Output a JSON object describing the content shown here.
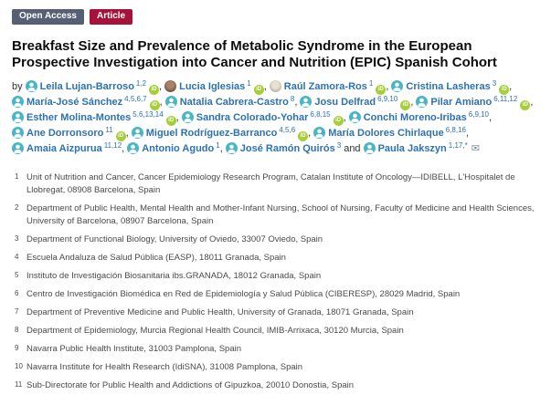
{
  "badges": [
    {
      "label": "Open Access",
      "color": "#565f73"
    },
    {
      "label": "Article",
      "color": "#a6123a"
    }
  ],
  "title": "Breakfast Size and Prevalence of Metabolic Syndrome in the European Prospective Investigation into Cancer and Nutrition (EPIC) Spanish Cohort",
  "byline": {
    "prefix": "by"
  },
  "icons": {
    "orcid": "iD",
    "envelope": "✉"
  },
  "colors": {
    "open_access_badge": "#565f73",
    "article_badge": "#a6123a",
    "author_link": "#2d72b0",
    "orcid_green": "#a6ce39",
    "avatar_teal": "#49b6c6",
    "envelope_gray": "#7b8ba0"
  },
  "authors": [
    {
      "name": "Leila Lujan-Barroso",
      "sup": "1,2",
      "orcid": true,
      "corresponding": false,
      "avatar": "generic",
      "sep": ","
    },
    {
      "name": "Lucia Iglesias",
      "sup": "1",
      "orcid": true,
      "corresponding": false,
      "avatar": "photo-dark",
      "sep": ","
    },
    {
      "name": "Raúl Zamora-Ros",
      "sup": "1",
      "orcid": true,
      "corresponding": false,
      "avatar": "photo-light",
      "sep": ","
    },
    {
      "name": "Cristina Lasheras",
      "sup": "3",
      "orcid": true,
      "corresponding": false,
      "avatar": "generic",
      "sep": ","
    },
    {
      "name": "María-José Sánchez",
      "sup": "4,5,6,7",
      "orcid": true,
      "corresponding": false,
      "avatar": "generic",
      "sep": ","
    },
    {
      "name": "Natalia Cabrera-Castro",
      "sup": "8",
      "orcid": false,
      "corresponding": false,
      "avatar": "generic",
      "sep": ","
    },
    {
      "name": "Josu Delfrad",
      "sup": "6,9,10",
      "orcid": true,
      "corresponding": false,
      "avatar": "generic",
      "sep": ","
    },
    {
      "name": "Pilar Amiano",
      "sup": "6,11,12",
      "orcid": true,
      "corresponding": false,
      "avatar": "generic",
      "sep": ","
    },
    {
      "name": "Esther Molina-Montes",
      "sup": "5,6,13,14",
      "orcid": true,
      "corresponding": false,
      "avatar": "generic",
      "sep": ","
    },
    {
      "name": "Sandra Colorado-Yohar",
      "sup": "6,8,15",
      "orcid": true,
      "corresponding": false,
      "avatar": "generic",
      "sep": ","
    },
    {
      "name": "Conchi Moreno-Iribas",
      "sup": "6,9,10",
      "orcid": false,
      "corresponding": false,
      "avatar": "generic",
      "sep": ","
    },
    {
      "name": "Ane Dorronsoro",
      "sup": "11",
      "orcid": true,
      "corresponding": false,
      "avatar": "generic",
      "sep": ","
    },
    {
      "name": "Miguel Rodríguez-Barranco",
      "sup": "4,5,6",
      "orcid": true,
      "corresponding": false,
      "avatar": "generic",
      "sep": ","
    },
    {
      "name": "María Dolores Chirlaque",
      "sup": "6,8,16",
      "orcid": false,
      "corresponding": false,
      "avatar": "generic",
      "sep": ","
    },
    {
      "name": "Amaia Aizpurua",
      "sup": "11,12",
      "orcid": false,
      "corresponding": false,
      "avatar": "generic",
      "sep": ","
    },
    {
      "name": "Antonio Agudo",
      "sup": "1",
      "orcid": false,
      "corresponding": false,
      "avatar": "generic",
      "sep": ","
    },
    {
      "name": "José Ramón Quirós",
      "sup": "3",
      "orcid": false,
      "corresponding": false,
      "avatar": "generic",
      "sep": " and"
    },
    {
      "name": "Paula Jakszyn",
      "sup": "1,17,*",
      "orcid": false,
      "corresponding": true,
      "avatar": "generic",
      "sep": ""
    }
  ],
  "affiliations": [
    {
      "num": "1",
      "text": "Unit of Nutrition and Cancer, Cancer Epidemiology Research Program, Catalan Institute of Oncology—IDIBELL, L'Hospitalet de Llobregat, 08908 Barcelona, Spain"
    },
    {
      "num": "2",
      "text": "Department of Public Health, Mental Health and Mother-Infant Nursing, School of Nursing, Faculty of Medicine and Health Sciences, University of Barcelona, 08907 Barcelona, Spain"
    },
    {
      "num": "3",
      "text": "Department of Functional Biology, University of Oviedo, 33007 Oviedo, Spain"
    },
    {
      "num": "4",
      "text": "Escuela Andaluza de Salud Pública (EASP), 18011 Granada, Spain"
    },
    {
      "num": "5",
      "text": "Instituto de Investigación Biosanitaria ibs.GRANADA, 18012 Granada, Spain"
    },
    {
      "num": "6",
      "text": "Centro de Investigación Biomédica en Red de Epidemiología y Salud Pública (CIBERESP), 28029 Madrid, Spain"
    },
    {
      "num": "7",
      "text": "Department of Preventive Medicine and Public Health, University of Granada, 18071 Granada, Spain"
    },
    {
      "num": "8",
      "text": "Department of Epidemiology, Murcia Regional Health Council, IMIB-Arrixaca, 30120 Murcia, Spain"
    },
    {
      "num": "9",
      "text": "Navarra Public Health Institute, 31003 Pamplona, Spain"
    },
    {
      "num": "10",
      "text": "Navarra Institute for Health Research (IdiSNA), 31008 Pamplona, Spain"
    },
    {
      "num": "11",
      "text": "Sub-Directorate for Public Health and Addictions of Gipuzkoa, 20010 Donostia, Spain"
    }
  ]
}
